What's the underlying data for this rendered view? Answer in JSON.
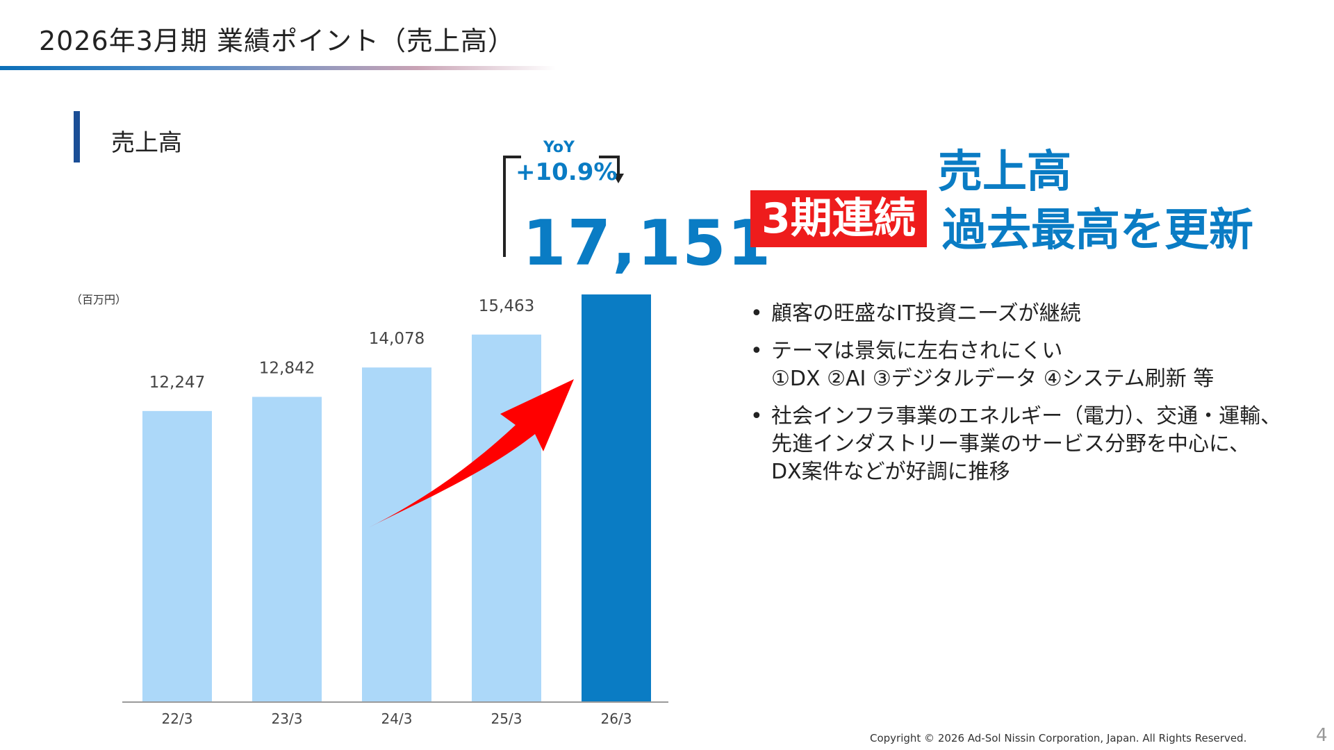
{
  "header": {
    "title": "2026年3月期 業績ポイント（売上高）"
  },
  "section": {
    "label": "売上高"
  },
  "chart_data": {
    "type": "bar",
    "unit": "（百万円）",
    "categories": [
      "22/3",
      "23/3",
      "24/3",
      "25/3",
      "26/3"
    ],
    "values": [
      12247,
      12842,
      14078,
      15463,
      17151
    ],
    "value_labels": [
      "12,247",
      "12,842",
      "14,078",
      "15,463",
      ""
    ],
    "ylim": [
      0,
      17151
    ],
    "colors": [
      "#acd8f9",
      "#acd8f9",
      "#acd8f9",
      "#acd8f9",
      "#0a7cc4"
    ],
    "grid": false,
    "annotations": {
      "yoy_label": "YoY",
      "yoy_value": "+10.9%",
      "highlight_value": "17,151"
    }
  },
  "headline": {
    "line1": "売上高",
    "badge": "3期連続",
    "line2": "過去最高を更新"
  },
  "bullets": [
    [
      "顧客の旺盛なIT投資ニーズが継続"
    ],
    [
      "テーマは景気に左右されにくい",
      "①DX ②AI ③デジタルデータ ④システム刷新 等"
    ],
    [
      "社会インフラ事業のエネルギー（電力）、交通・運輸、",
      "先進インダストリー事業のサービス分野を中心に、",
      "DX案件などが好調に推移"
    ]
  ],
  "footer": {
    "copyright": "Copyright © 2026 Ad-Sol Nissin Corporation, Japan. All Rights Reserved.",
    "page": "4"
  },
  "colors": {
    "accent_blue": "#0a7cc4",
    "light_bar": "#acd8f9",
    "badge_red": "#ee1c1c",
    "arrow_red": "#ff0000"
  }
}
